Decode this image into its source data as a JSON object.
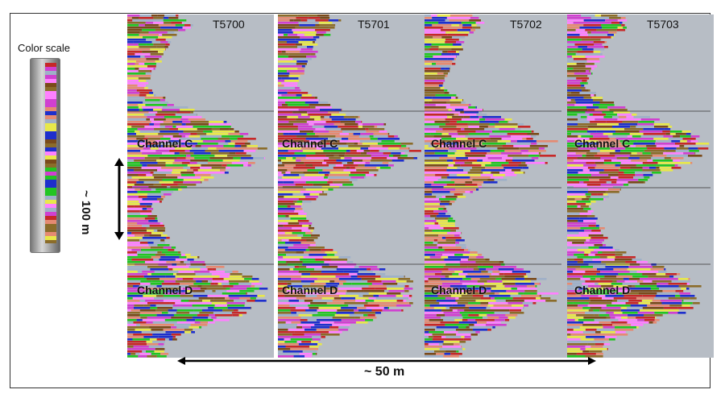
{
  "color_scale": {
    "title": "Color scale"
  },
  "panels": [
    {
      "label": "T5700",
      "channels": [
        "Channel C",
        "Channel D"
      ]
    },
    {
      "label": "T5701",
      "channels": [
        "Channel C",
        "Channel D"
      ]
    },
    {
      "label": "T5702",
      "channels": [
        "Channel C",
        "Channel D"
      ]
    },
    {
      "label": "T5703",
      "channels": [
        "Channel C",
        "Channel D"
      ]
    }
  ],
  "scale_markers": {
    "vertical": "~ 100 m",
    "horizontal": "~ 50 m"
  },
  "colors": {
    "background": "#b7bdc5",
    "facies": [
      "#ff80ff",
      "#22c522",
      "#c62828",
      "#8b6c2a",
      "#1e2fcc",
      "#e58a72",
      "#9fb0c8",
      "#e8e84a",
      "#7a4a1a",
      "#d040d0"
    ]
  }
}
